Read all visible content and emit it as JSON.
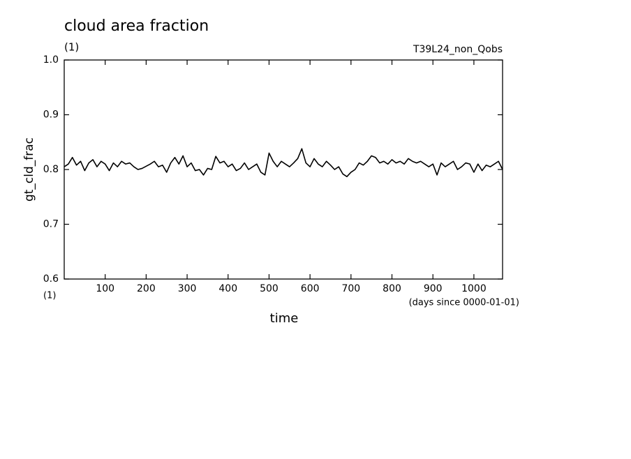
{
  "chart_data": {
    "type": "line",
    "title": "cloud area fraction",
    "subtitle": "(1)",
    "run_label": "T39L24_non_Qobs",
    "ylabel": "gt_cld_frac",
    "yunits": "(1)",
    "xlabel": "time",
    "xunits": "(days since 0000-01-01)",
    "xlim": [
      0,
      1070
    ],
    "ylim": [
      0.6,
      1.0
    ],
    "xticks": [
      100,
      200,
      300,
      400,
      500,
      600,
      700,
      800,
      900,
      1000
    ],
    "yticks": [
      0.6,
      0.7,
      0.8,
      0.9,
      {
        "value": 1.0,
        "label": "1.0"
      }
    ],
    "x": [
      0,
      10,
      20,
      30,
      40,
      50,
      60,
      70,
      80,
      90,
      100,
      110,
      120,
      130,
      140,
      150,
      160,
      170,
      180,
      190,
      200,
      210,
      220,
      230,
      240,
      250,
      260,
      270,
      280,
      290,
      300,
      310,
      320,
      330,
      340,
      350,
      360,
      370,
      380,
      390,
      400,
      410,
      420,
      430,
      440,
      450,
      460,
      470,
      480,
      490,
      500,
      510,
      520,
      530,
      540,
      550,
      560,
      570,
      580,
      590,
      600,
      610,
      620,
      630,
      640,
      650,
      660,
      670,
      680,
      690,
      700,
      710,
      720,
      730,
      740,
      750,
      760,
      770,
      780,
      790,
      800,
      810,
      820,
      830,
      840,
      850,
      860,
      870,
      880,
      890,
      900,
      910,
      920,
      930,
      940,
      950,
      960,
      970,
      980,
      990,
      1000,
      1010,
      1020,
      1030,
      1040,
      1050,
      1060,
      1070
    ],
    "series": [
      {
        "color": "#000000",
        "values": [
          0.805,
          0.81,
          0.822,
          0.808,
          0.815,
          0.798,
          0.812,
          0.818,
          0.805,
          0.815,
          0.81,
          0.798,
          0.812,
          0.805,
          0.815,
          0.81,
          0.812,
          0.805,
          0.8,
          0.802,
          0.806,
          0.81,
          0.815,
          0.805,
          0.808,
          0.795,
          0.812,
          0.822,
          0.81,
          0.825,
          0.805,
          0.812,
          0.798,
          0.8,
          0.79,
          0.802,
          0.8,
          0.824,
          0.812,
          0.815,
          0.805,
          0.81,
          0.798,
          0.802,
          0.812,
          0.8,
          0.805,
          0.81,
          0.795,
          0.79,
          0.83,
          0.815,
          0.805,
          0.815,
          0.81,
          0.805,
          0.812,
          0.82,
          0.838,
          0.812,
          0.805,
          0.82,
          0.81,
          0.805,
          0.815,
          0.808,
          0.8,
          0.805,
          0.792,
          0.787,
          0.795,
          0.8,
          0.812,
          0.808,
          0.815,
          0.825,
          0.822,
          0.812,
          0.815,
          0.81,
          0.818,
          0.812,
          0.815,
          0.81,
          0.82,
          0.815,
          0.812,
          0.815,
          0.81,
          0.805,
          0.81,
          0.79,
          0.812,
          0.805,
          0.81,
          0.815,
          0.8,
          0.805,
          0.812,
          0.81,
          0.795,
          0.81,
          0.798,
          0.808,
          0.805,
          0.81,
          0.815,
          0.8
        ]
      }
    ]
  }
}
